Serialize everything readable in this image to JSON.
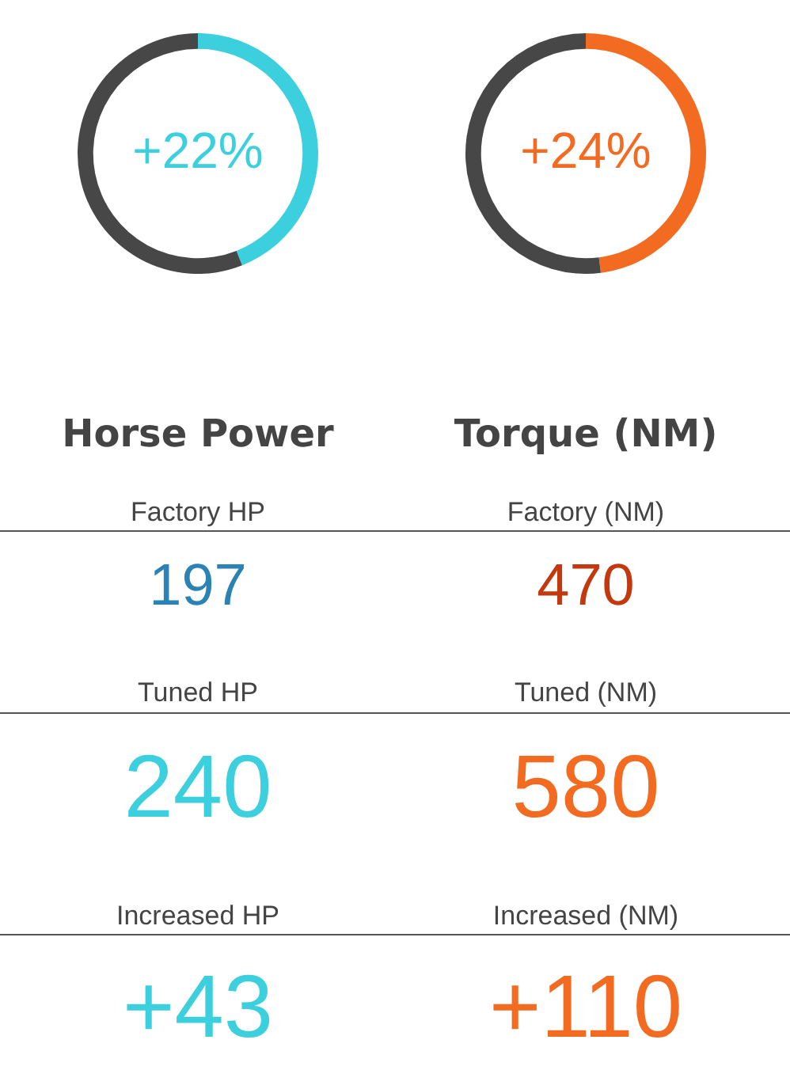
{
  "chart_data": [
    {
      "type": "donut",
      "categories": [
        null,
        null
      ],
      "values": [
        44,
        56
      ],
      "colors": [
        "#3ccfdd",
        "#474747"
      ],
      "annotations": [
        "+22%"
      ]
    },
    {
      "type": "donut",
      "categories": [
        null,
        null
      ],
      "values": [
        48,
        52
      ],
      "colors": [
        "#f26b21",
        "#474747"
      ],
      "annotations": [
        "+24%"
      ]
    },
    {
      "type": "other",
      "title": "Horse Power",
      "categories": [
        "Factory HP",
        "Tuned HP",
        "Increased HP"
      ],
      "value_labels": [
        "197",
        "240",
        "+43"
      ],
      "colors": [
        "#2b82b5",
        "#3ccfdd",
        "#3ccfdd"
      ]
    },
    {
      "type": "other",
      "title": "Torque (NM)",
      "categories": [
        "Factory (NM)",
        "Tuned (NM)",
        "Increased (NM)"
      ],
      "value_labels": [
        "470",
        "580",
        "+110"
      ],
      "colors": [
        "#c3390f",
        "#f26b21",
        "#f26b21"
      ]
    }
  ]
}
